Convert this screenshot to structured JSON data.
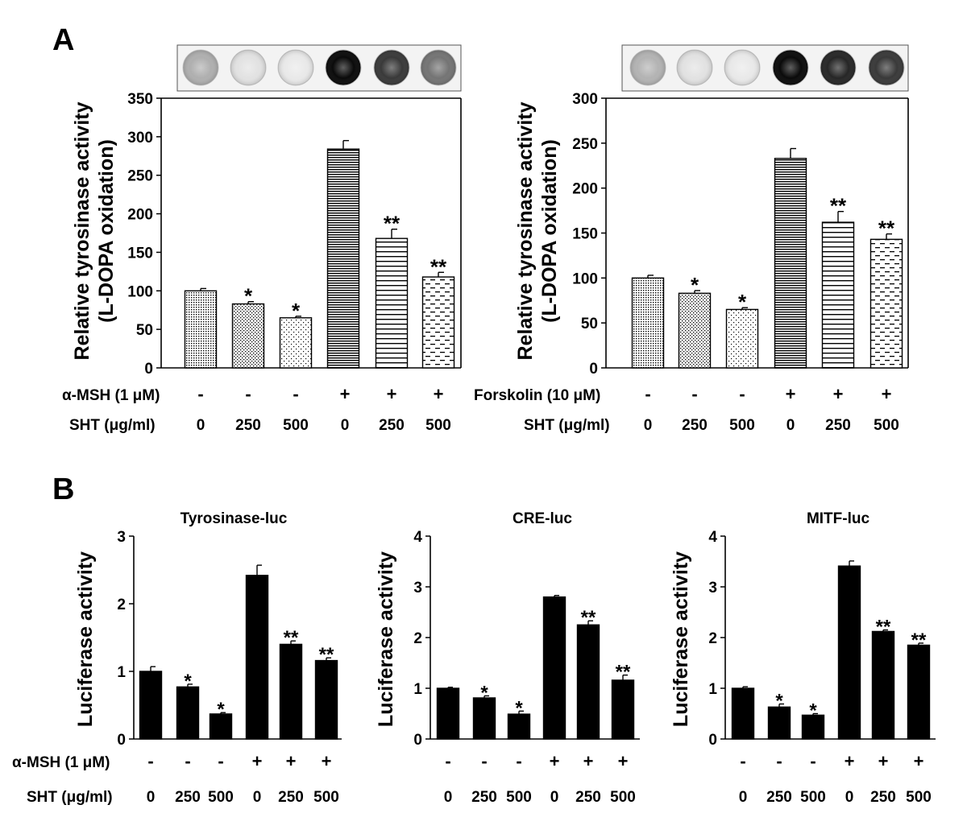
{
  "panels": {
    "A": "A",
    "B": "B"
  },
  "conditions": {
    "row_msh": "α-MSH (1 μM)",
    "row_forskolin": "Forskolin (10 μM)",
    "row_sht": "SHT (μg/ml)",
    "stimulant_signs": [
      "-",
      "-",
      "-",
      "+",
      "+",
      "+"
    ],
    "sht_doses": [
      "0",
      "250",
      "500",
      "0",
      "250",
      "500"
    ]
  },
  "well_intensities": {
    "msh": [
      0.3,
      0.08,
      0.05,
      1.0,
      0.8,
      0.55
    ],
    "forskolin": [
      0.28,
      0.08,
      0.05,
      1.0,
      0.88,
      0.8
    ]
  },
  "colors": {
    "bar_dark": "#000000",
    "bar_light": "#ffffff",
    "axis": "#000000",
    "well_strip_bg": "#f3f3f3"
  },
  "chart_data": [
    {
      "id": "A-left",
      "type": "bar",
      "title": "",
      "xlabel": "",
      "ylabel": [
        "Relative tyrosinase activity",
        "(L-DOPA oxidation)"
      ],
      "ylim": [
        0,
        350
      ],
      "yticks": [
        "0",
        "50",
        "100",
        "150",
        "200",
        "250",
        "300",
        "350"
      ],
      "categories": [
        "α-MSH − / SHT 0",
        "α-MSH − / SHT 250",
        "α-MSH − / SHT 500",
        "α-MSH + / SHT 0",
        "α-MSH + / SHT 250",
        "α-MSH + / SHT 500"
      ],
      "values": [
        100,
        83,
        65,
        284,
        168,
        118
      ],
      "errors": [
        3,
        3,
        2,
        11,
        12,
        6
      ],
      "significance": [
        "",
        "*",
        "*",
        "",
        "**",
        "**"
      ],
      "fills": [
        "dense-dots",
        "dots",
        "sparse-dots",
        "dense-lines",
        "lines",
        "dashes"
      ]
    },
    {
      "id": "A-right",
      "type": "bar",
      "title": "",
      "xlabel": "",
      "ylabel": [
        "Relative tyrosinase activity",
        "(L-DOPA oxidation)"
      ],
      "ylim": [
        0,
        300
      ],
      "yticks": [
        "0",
        "50",
        "100",
        "150",
        "200",
        "250",
        "300"
      ],
      "categories": [
        "Forskolin − / SHT 0",
        "Forskolin − / SHT 250",
        "Forskolin − / SHT 500",
        "Forskolin + / SHT 0",
        "Forskolin + / SHT 250",
        "Forskolin + / SHT 500"
      ],
      "values": [
        100,
        83,
        65,
        233,
        162,
        143
      ],
      "errors": [
        3,
        3,
        2,
        11,
        12,
        6
      ],
      "significance": [
        "",
        "*",
        "*",
        "",
        "**",
        "**"
      ],
      "fills": [
        "dense-dots",
        "dots",
        "sparse-dots",
        "dense-lines",
        "lines",
        "dashes"
      ]
    },
    {
      "id": "B-tyrosinase",
      "type": "bar",
      "title": "Tyrosinase-luc",
      "xlabel": "",
      "ylabel": [
        "Luciferase activity"
      ],
      "ylim": [
        0,
        3
      ],
      "yticks": [
        "0",
        "1",
        "2",
        "3"
      ],
      "categories": [
        "α-MSH − / SHT 0",
        "α-MSH − / SHT 250",
        "α-MSH − / SHT 500",
        "α-MSH + / SHT 0",
        "α-MSH + / SHT 250",
        "α-MSH + / SHT 500"
      ],
      "values": [
        1.0,
        0.77,
        0.37,
        2.42,
        1.4,
        1.16
      ],
      "errors": [
        0.07,
        0.04,
        0.02,
        0.15,
        0.05,
        0.04
      ],
      "significance": [
        "",
        "*",
        "*",
        "",
        "**",
        "**"
      ],
      "fills": [
        "solid",
        "solid",
        "solid",
        "solid",
        "solid",
        "solid"
      ]
    },
    {
      "id": "B-cre",
      "type": "bar",
      "title": "CRE-luc",
      "xlabel": "",
      "ylabel": [
        "Luciferase activity"
      ],
      "ylim": [
        0,
        4
      ],
      "yticks": [
        "0",
        "1",
        "2",
        "3",
        "4"
      ],
      "categories": [
        "α-MSH − / SHT 0",
        "α-MSH − / SHT 250",
        "α-MSH − / SHT 500",
        "α-MSH + / SHT 0",
        "α-MSH + / SHT 250",
        "α-MSH + / SHT 500"
      ],
      "values": [
        1.0,
        0.81,
        0.49,
        2.8,
        2.25,
        1.16
      ],
      "errors": [
        0.02,
        0.04,
        0.06,
        0.03,
        0.08,
        0.1
      ],
      "significance": [
        "",
        "*",
        "*",
        "",
        "**",
        "**"
      ],
      "fills": [
        "solid",
        "solid",
        "solid",
        "solid",
        "solid",
        "solid"
      ]
    },
    {
      "id": "B-mitf",
      "type": "bar",
      "title": "MITF-luc",
      "xlabel": "",
      "ylabel": [
        "Luciferase activity"
      ],
      "ylim": [
        0,
        4
      ],
      "yticks": [
        "0",
        "1",
        "2",
        "3",
        "4"
      ],
      "categories": [
        "α-MSH − / SHT 0",
        "α-MSH − / SHT 250",
        "α-MSH − / SHT 500",
        "α-MSH + / SHT 0",
        "α-MSH + / SHT 250",
        "α-MSH + / SHT 500"
      ],
      "values": [
        1.0,
        0.63,
        0.47,
        3.41,
        2.12,
        1.85
      ],
      "errors": [
        0.03,
        0.06,
        0.03,
        0.1,
        0.03,
        0.04
      ],
      "significance": [
        "",
        "*",
        "*",
        "",
        "**",
        "**"
      ],
      "fills": [
        "solid",
        "solid",
        "solid",
        "solid",
        "solid",
        "solid"
      ]
    }
  ]
}
